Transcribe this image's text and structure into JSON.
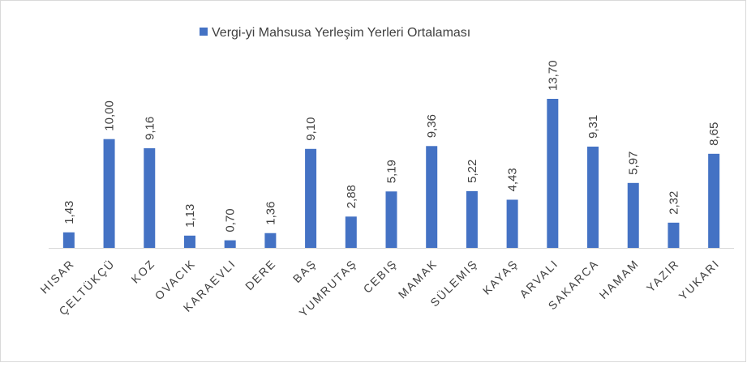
{
  "chart_data": {
    "type": "bar",
    "series": [
      {
        "name": "Vergi-yi Mahsusa Yerleşim Yerleri Ortalaması",
        "color": "#4472c4",
        "values": [
          1.43,
          10.0,
          9.16,
          1.13,
          0.7,
          1.36,
          9.1,
          2.88,
          5.19,
          9.36,
          5.22,
          4.43,
          13.7,
          9.31,
          5.97,
          2.32,
          8.65
        ],
        "value_labels": [
          "1,43",
          "10,00",
          "9,16",
          "1,13",
          "0,70",
          "1,36",
          "9,10",
          "2,88",
          "5,19",
          "9,36",
          "5,22",
          "4,43",
          "13,70",
          "9,31",
          "5,97",
          "2,32",
          "8,65"
        ]
      }
    ],
    "categories": [
      "HISAR",
      "ÇELTÜKÇÜ",
      "KOZ",
      "OVACIK",
      "KARAEVLI",
      "DERE",
      "BAŞ",
      "YUMRUTAŞ",
      "CEBIŞ",
      "MAMAK",
      "SÜLEMIŞ",
      "KAYAŞ",
      "ARVALI",
      "SAKARCA",
      "HAMAM",
      "YAZIR",
      "YUKARI"
    ],
    "legend": "top"
  }
}
